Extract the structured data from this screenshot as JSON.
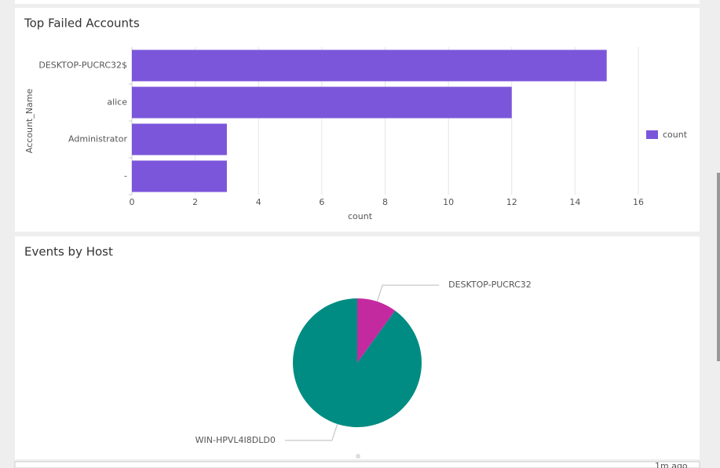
{
  "chart_data": [
    {
      "type": "bar",
      "orientation": "horizontal",
      "title": "Top Failed Accounts",
      "categories": [
        "DESKTOP-PUCRC32$",
        "alice",
        "Administrator",
        "-"
      ],
      "series": [
        {
          "name": "count",
          "color": "#7b56db",
          "values": [
            15,
            12,
            3,
            3
          ]
        }
      ],
      "xlim": [
        0,
        16
      ],
      "xticks": [
        0,
        2,
        4,
        6,
        8,
        10,
        12,
        14,
        16
      ],
      "xlabel": "count",
      "ylabel": "Account_Name",
      "grid": true,
      "legend": "right"
    },
    {
      "type": "pie",
      "title": "Events by Host",
      "categories": [
        "DESKTOP-PUCRC32",
        "WIN-HPVL4I8DLD0"
      ],
      "values": [
        10,
        90
      ],
      "colors": [
        "#c42aa0",
        "#008c82"
      ]
    }
  ],
  "footer": {
    "status": "1m ago"
  }
}
